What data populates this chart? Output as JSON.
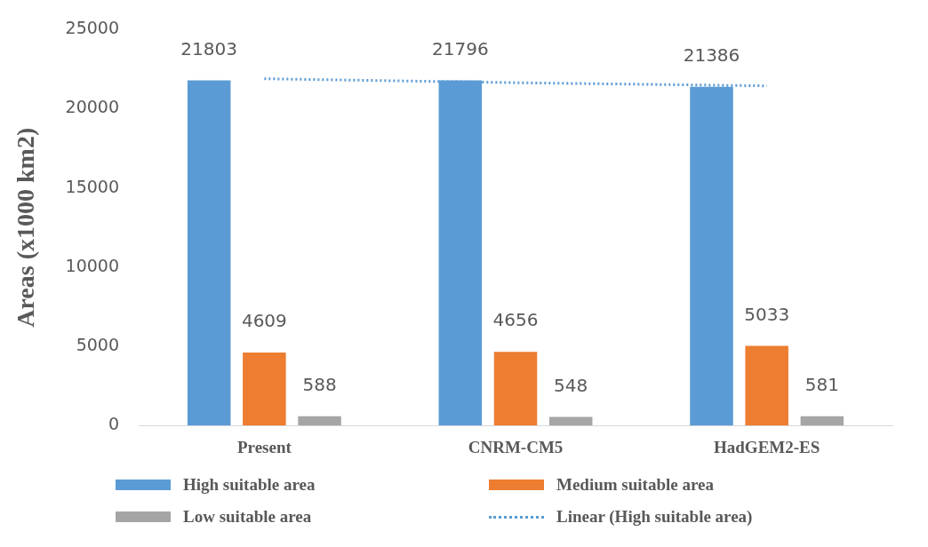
{
  "chart_data": {
    "type": "bar",
    "ylabel": "Areas (x1000 km2)",
    "categories": [
      "Present",
      "CNRM-CM5",
      "HadGEM2-ES"
    ],
    "series": [
      {
        "name": "High suitable area",
        "color": "#5b9bd5",
        "values": [
          21803,
          21796,
          21386
        ],
        "value_labels": [
          "21803",
          "21796",
          "21386"
        ]
      },
      {
        "name": "Medium suitable area",
        "color": "#ed7d31",
        "values": [
          4609,
          4656,
          5033
        ],
        "value_labels": [
          "4609",
          "4656",
          "5033"
        ]
      },
      {
        "name": "Low suitable area",
        "color": "#a5a5a5",
        "values": [
          588,
          548,
          581
        ],
        "value_labels": [
          "588",
          "548",
          "581"
        ]
      },
      {
        "name": "Linear (High suitable area)",
        "type": "line",
        "color": "#5b9bd5",
        "line_style": "dotted",
        "marker": "none",
        "values": [
          21900,
          21650,
          21450
        ]
      }
    ],
    "ylim": [
      0,
      25000
    ],
    "yticks": [
      0,
      5000,
      10000,
      15000,
      20000,
      25000
    ],
    "grid": false,
    "legend": "bottom"
  }
}
